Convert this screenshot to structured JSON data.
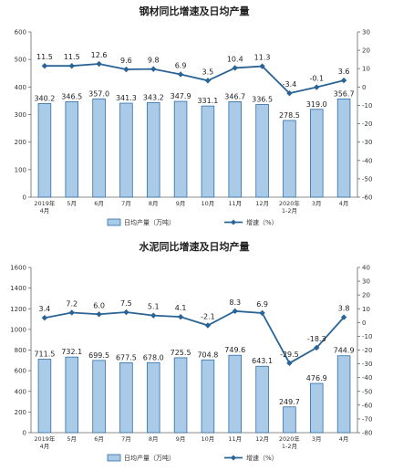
{
  "chart_data": [
    {
      "type": "bar",
      "title": "钢材同比增速及日均产量",
      "categories": [
        [
          "2019年",
          "4月"
        ],
        [
          "5月"
        ],
        [
          "6月"
        ],
        [
          "7月"
        ],
        [
          "8月"
        ],
        [
          "9月"
        ],
        [
          "10月"
        ],
        [
          "11月"
        ],
        [
          "12月"
        ],
        [
          "2020年",
          "1-2月"
        ],
        [
          "3月"
        ],
        [
          "4月"
        ]
      ],
      "series": [
        {
          "name": "日均产量（万吨）",
          "type": "bar",
          "axis": "left",
          "values": [
            340.2,
            346.5,
            357.0,
            341.3,
            343.2,
            347.9,
            331.1,
            346.7,
            336.5,
            278.5,
            319.0,
            356.7
          ],
          "labels": [
            "340.2",
            "346.5",
            "357.0",
            "341.3",
            "343.2",
            "347.9",
            "331.1",
            "346.7",
            "336.5",
            "278.5",
            "319.0",
            "356.7"
          ]
        },
        {
          "name": "增速（%）",
          "type": "line",
          "axis": "right",
          "values": [
            11.5,
            11.5,
            12.6,
            9.6,
            9.8,
            6.9,
            3.5,
            10.4,
            11.3,
            -3.4,
            -0.1,
            3.6
          ],
          "labels": [
            "11.5",
            "11.5",
            "12.6",
            "9.6",
            "9.8",
            "6.9",
            "3.5",
            "10.4",
            "11.3",
            "-3.4",
            "-0.1",
            "3.6"
          ]
        }
      ],
      "yleft": {
        "min": 0,
        "max": 600,
        "step": 100,
        "ticks": [
          "0",
          "100",
          "200",
          "300",
          "400",
          "500",
          "600"
        ]
      },
      "yright": {
        "min": -60,
        "max": 30,
        "step": 10,
        "ticks": [
          "-60",
          "-50",
          "-40",
          "-30",
          "-20",
          "-10",
          "0",
          "10",
          "20",
          "30"
        ]
      },
      "legend": "bottom",
      "colors": {
        "bar": "#a9cbe8",
        "bar_edge": "#2f6ea8",
        "line": "#2a6496"
      }
    },
    {
      "type": "bar",
      "title": "水泥同比增速及日均产量",
      "categories": [
        [
          "2019年",
          "4月"
        ],
        [
          "5月"
        ],
        [
          "6月"
        ],
        [
          "7月"
        ],
        [
          "8月"
        ],
        [
          "9月"
        ],
        [
          "10月"
        ],
        [
          "11月"
        ],
        [
          "12月"
        ],
        [
          "2020年",
          "1-2月"
        ],
        [
          "3月"
        ],
        [
          "4月"
        ]
      ],
      "series": [
        {
          "name": "日均产量（万吨）",
          "type": "bar",
          "axis": "left",
          "values": [
            711.5,
            732.1,
            699.5,
            677.5,
            678.0,
            725.5,
            704.8,
            749.6,
            643.1,
            249.7,
            476.9,
            744.9
          ],
          "labels": [
            "711.5",
            "732.1",
            "699.5",
            "677.5",
            "678.0",
            "725.5",
            "704.8",
            "749.6",
            "643.1",
            "249.7",
            "476.9",
            "744.9"
          ]
        },
        {
          "name": "增速（%）",
          "type": "line",
          "axis": "right",
          "values": [
            3.4,
            7.2,
            6.0,
            7.5,
            5.1,
            4.1,
            -2.1,
            8.3,
            6.9,
            -29.5,
            -18.3,
            3.8
          ],
          "labels": [
            "3.4",
            "7.2",
            "6.0",
            "7.5",
            "5.1",
            "4.1",
            "-2.1",
            "8.3",
            "6.9",
            "-29.5",
            "-18.3",
            "3.8"
          ]
        }
      ],
      "yleft": {
        "min": 0,
        "max": 1600,
        "step": 200,
        "ticks": [
          "0",
          "200",
          "400",
          "600",
          "800",
          "1000",
          "1200",
          "1400",
          "1600"
        ]
      },
      "yright": {
        "min": -80,
        "max": 40,
        "step": 10,
        "ticks": [
          "-80",
          "-70",
          "-60",
          "-50",
          "-40",
          "-30",
          "-20",
          "-10",
          "0",
          "10",
          "20",
          "30",
          "40"
        ]
      },
      "legend": "bottom",
      "colors": {
        "bar": "#a9cbe8",
        "bar_edge": "#2f6ea8",
        "line": "#2a6496"
      }
    }
  ]
}
